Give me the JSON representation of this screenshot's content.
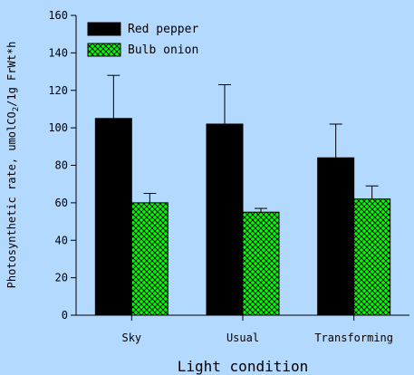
{
  "chart_data": {
    "type": "bar",
    "title": "",
    "xlabel": "Light condition",
    "ylabel_prefix": "Photosynthetic rate, umolCO",
    "ylabel_sub": "2",
    "ylabel_suffix": "/1g FrWt*h",
    "categories": [
      "Sky",
      "Usual",
      "Transforming"
    ],
    "ylim": [
      0,
      160
    ],
    "yticks": [
      0,
      20,
      40,
      60,
      80,
      100,
      120,
      140,
      160
    ],
    "legend_position": "top-left",
    "series": [
      {
        "name": "Red pepper",
        "color": "#000000",
        "pattern": "solid",
        "values": [
          105,
          102,
          84
        ],
        "errors": [
          23,
          21,
          18
        ]
      },
      {
        "name": "Bulb onion",
        "color": "#00ff00",
        "pattern": "crosshatch",
        "values": [
          60,
          55,
          62
        ],
        "errors": [
          5,
          2,
          7
        ]
      }
    ]
  },
  "colors": {
    "background": "#b3d9ff",
    "axis": "#000000",
    "onion_hatch_line": "#000000"
  }
}
